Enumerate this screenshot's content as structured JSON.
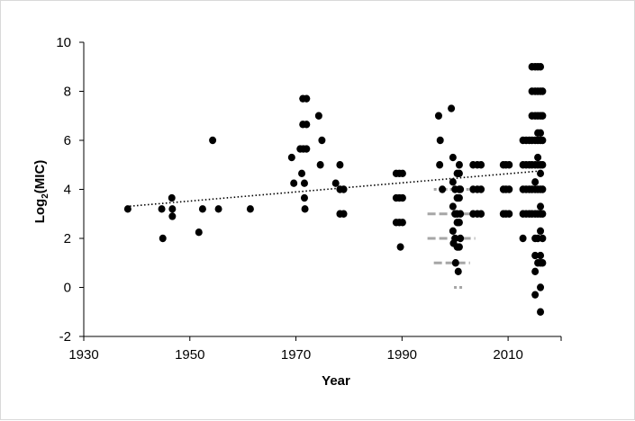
{
  "chart_data": {
    "type": "scatter",
    "title": "",
    "xlabel": "Year",
    "ylabel": "Log",
    "ylabel_sub": "2",
    "ylabel_tail": "(MIC)",
    "xlim": [
      1930,
      2020
    ],
    "ylim": [
      -2,
      10
    ],
    "xticks": [
      1930,
      1950,
      1970,
      1990,
      2010
    ],
    "yticks": [
      -2,
      0,
      2,
      4,
      6,
      8,
      10
    ],
    "grid": false,
    "legend": "none",
    "colors": {
      "points": "#000000",
      "trend": "#000000",
      "gray": "#a6a6a6",
      "border": "#d9d9d9"
    },
    "points": [
      [
        1938.3,
        3.2
      ],
      [
        1944.7,
        3.2
      ],
      [
        1944.9,
        2.0
      ],
      [
        1946.6,
        3.65
      ],
      [
        1946.7,
        3.2
      ],
      [
        1946.7,
        2.9
      ],
      [
        1951.7,
        2.25
      ],
      [
        1952.4,
        3.2
      ],
      [
        1954.3,
        6.0
      ],
      [
        1955.4,
        3.2
      ],
      [
        1961.4,
        3.2
      ],
      [
        1969.2,
        5.3
      ],
      [
        1969.6,
        4.25
      ],
      [
        1970.8,
        5.65
      ],
      [
        1971.1,
        4.65
      ],
      [
        1971.3,
        7.7
      ],
      [
        1971.3,
        6.65
      ],
      [
        1971.4,
        5.65
      ],
      [
        1971.6,
        4.25
      ],
      [
        1971.6,
        3.65
      ],
      [
        1971.7,
        3.2
      ],
      [
        1972.0,
        7.7
      ],
      [
        1972.0,
        6.65
      ],
      [
        1972.0,
        5.65
      ],
      [
        1974.3,
        7.0
      ],
      [
        1974.6,
        5.0
      ],
      [
        1974.9,
        6.0
      ],
      [
        1977.5,
        4.25
      ],
      [
        1978.3,
        5.0
      ],
      [
        1978.3,
        4.0
      ],
      [
        1978.3,
        3.0
      ],
      [
        1979.0,
        4.0
      ],
      [
        1979.0,
        3.0
      ],
      [
        1988.9,
        4.65
      ],
      [
        1988.9,
        3.65
      ],
      [
        1988.9,
        2.65
      ],
      [
        1989.5,
        4.65
      ],
      [
        1989.5,
        3.65
      ],
      [
        1989.5,
        2.65
      ],
      [
        1989.7,
        1.65
      ],
      [
        1990.1,
        4.65
      ],
      [
        1990.1,
        3.65
      ],
      [
        1990.1,
        2.65
      ],
      [
        1996.9,
        7.0
      ],
      [
        1997.2,
        6.0
      ],
      [
        1997.1,
        5.0
      ],
      [
        1997.6,
        4.0
      ],
      [
        1999.3,
        7.3
      ],
      [
        1999.6,
        5.3
      ],
      [
        1999.6,
        4.3
      ],
      [
        1999.6,
        3.3
      ],
      [
        1999.6,
        2.3
      ],
      [
        1999.7,
        1.8
      ],
      [
        2000.0,
        4.0
      ],
      [
        2000.0,
        3.0
      ],
      [
        2000.0,
        2.0
      ],
      [
        2000.1,
        1.0
      ],
      [
        2000.4,
        4.65
      ],
      [
        2000.4,
        3.65
      ],
      [
        2000.4,
        3.0
      ],
      [
        2000.4,
        2.65
      ],
      [
        2000.4,
        1.65
      ],
      [
        2000.6,
        0.65
      ],
      [
        2000.8,
        5.0
      ],
      [
        2000.8,
        4.65
      ],
      [
        2000.8,
        4.0
      ],
      [
        2000.8,
        3.65
      ],
      [
        2000.8,
        2.65
      ],
      [
        2000.8,
        1.65
      ],
      [
        2001.0,
        4.0
      ],
      [
        2001.0,
        3.0
      ],
      [
        2001.0,
        2.0
      ],
      [
        2003.4,
        5.0
      ],
      [
        2003.4,
        4.0
      ],
      [
        2003.4,
        3.0
      ],
      [
        2004.2,
        5.0
      ],
      [
        2004.2,
        4.0
      ],
      [
        2004.2,
        3.0
      ],
      [
        2004.9,
        5.0
      ],
      [
        2004.9,
        4.0
      ],
      [
        2004.9,
        3.0
      ],
      [
        2009.1,
        5.0
      ],
      [
        2009.1,
        4.0
      ],
      [
        2009.1,
        3.0
      ],
      [
        2009.6,
        5.0
      ],
      [
        2009.6,
        4.0
      ],
      [
        2009.6,
        3.0
      ],
      [
        2010.2,
        5.0
      ],
      [
        2010.2,
        4.0
      ],
      [
        2010.2,
        3.0
      ],
      [
        2012.8,
        6.0
      ],
      [
        2012.8,
        5.0
      ],
      [
        2012.8,
        4.0
      ],
      [
        2012.8,
        3.0
      ],
      [
        2012.8,
        2.0
      ],
      [
        2013.4,
        6.0
      ],
      [
        2013.4,
        5.0
      ],
      [
        2013.4,
        4.0
      ],
      [
        2013.4,
        3.0
      ],
      [
        2014.0,
        6.0
      ],
      [
        2014.0,
        5.0
      ],
      [
        2014.0,
        4.0
      ],
      [
        2014.0,
        3.0
      ],
      [
        2014.5,
        9.0
      ],
      [
        2014.5,
        8.0
      ],
      [
        2014.5,
        7.0
      ],
      [
        2014.5,
        6.0
      ],
      [
        2014.5,
        5.0
      ],
      [
        2014.5,
        4.0
      ],
      [
        2014.5,
        3.0
      ],
      [
        2015.1,
        9.0
      ],
      [
        2015.1,
        8.0
      ],
      [
        2015.1,
        7.0
      ],
      [
        2015.1,
        6.0
      ],
      [
        2015.1,
        5.0
      ],
      [
        2015.1,
        4.3
      ],
      [
        2015.1,
        4.0
      ],
      [
        2015.1,
        3.0
      ],
      [
        2015.1,
        2.0
      ],
      [
        2015.1,
        1.3
      ],
      [
        2015.1,
        0.65
      ],
      [
        2015.1,
        -0.3
      ],
      [
        2015.6,
        9.0
      ],
      [
        2015.6,
        8.0
      ],
      [
        2015.6,
        7.0
      ],
      [
        2015.6,
        6.3
      ],
      [
        2015.6,
        6.0
      ],
      [
        2015.6,
        5.3
      ],
      [
        2015.6,
        5.0
      ],
      [
        2015.6,
        4.0
      ],
      [
        2015.6,
        3.0
      ],
      [
        2015.6,
        2.0
      ],
      [
        2015.6,
        1.0
      ],
      [
        2016.1,
        9.0
      ],
      [
        2016.1,
        8.0
      ],
      [
        2016.1,
        7.0
      ],
      [
        2016.1,
        6.3
      ],
      [
        2016.1,
        6.0
      ],
      [
        2016.1,
        5.0
      ],
      [
        2016.1,
        4.65
      ],
      [
        2016.1,
        4.0
      ],
      [
        2016.1,
        3.3
      ],
      [
        2016.1,
        3.0
      ],
      [
        2016.1,
        2.3
      ],
      [
        2016.1,
        1.3
      ],
      [
        2016.1,
        1.0
      ],
      [
        2016.1,
        0.0
      ],
      [
        2016.1,
        -1.0
      ],
      [
        2016.5,
        8.0
      ],
      [
        2016.5,
        7.0
      ],
      [
        2016.5,
        6.0
      ],
      [
        2016.5,
        5.0
      ],
      [
        2016.5,
        4.0
      ],
      [
        2016.5,
        3.0
      ],
      [
        2016.5,
        2.0
      ],
      [
        2016.5,
        1.0
      ]
    ],
    "gray_lines": [
      {
        "x1": 1996.0,
        "x2": 2004.0,
        "y": 4.0,
        "style": "dotted"
      },
      {
        "x1": 1994.8,
        "x2": 2004.0,
        "y": 3.0,
        "style": "dashed"
      },
      {
        "x1": 1994.8,
        "x2": 2003.8,
        "y": 2.0,
        "style": "dashed"
      },
      {
        "x1": 1996.0,
        "x2": 2002.8,
        "y": 1.0,
        "style": "dashed"
      },
      {
        "x1": 1999.8,
        "x2": 2001.6,
        "y": 0.0,
        "style": "dotted"
      }
    ],
    "trendline": {
      "x1": 1938,
      "y1": 3.3,
      "x2": 2016,
      "y2": 4.75,
      "style": "dotted"
    }
  }
}
